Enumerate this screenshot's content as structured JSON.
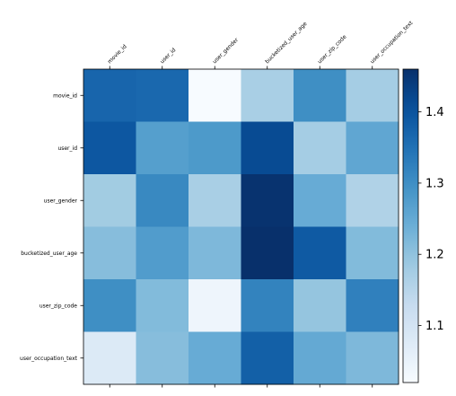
{
  "chart_data": {
    "type": "heatmap",
    "colormap": "Blues",
    "x_categories": [
      "movie_id",
      "user_id",
      "user_gender",
      "bucketized_user_age",
      "user_zip_code",
      "user_occupation_text"
    ],
    "y_categories": [
      "movie_id",
      "user_id",
      "user_gender",
      "bucketized_user_age",
      "user_zip_code",
      "user_occupation_text"
    ],
    "values": [
      [
        1.37,
        1.365,
        1.02,
        1.17,
        1.3,
        1.175
      ],
      [
        1.395,
        1.27,
        1.28,
        1.415,
        1.175,
        1.255
      ],
      [
        1.18,
        1.31,
        1.17,
        1.455,
        1.245,
        1.16
      ],
      [
        1.21,
        1.275,
        1.22,
        1.46,
        1.39,
        1.215
      ],
      [
        1.3,
        1.215,
        1.04,
        1.32,
        1.195,
        1.325
      ],
      [
        1.08,
        1.21,
        1.245,
        1.38,
        1.25,
        1.22
      ]
    ],
    "vmin": 1.02,
    "vmax": 1.46,
    "colorbar_ticks": [
      "1.1",
      "1.2",
      "1.3",
      "1.4"
    ],
    "colorbar_tick_values": [
      1.1,
      1.2,
      1.3,
      1.4
    ],
    "title": "",
    "xlabel": "",
    "ylabel": "",
    "grid": false
  }
}
